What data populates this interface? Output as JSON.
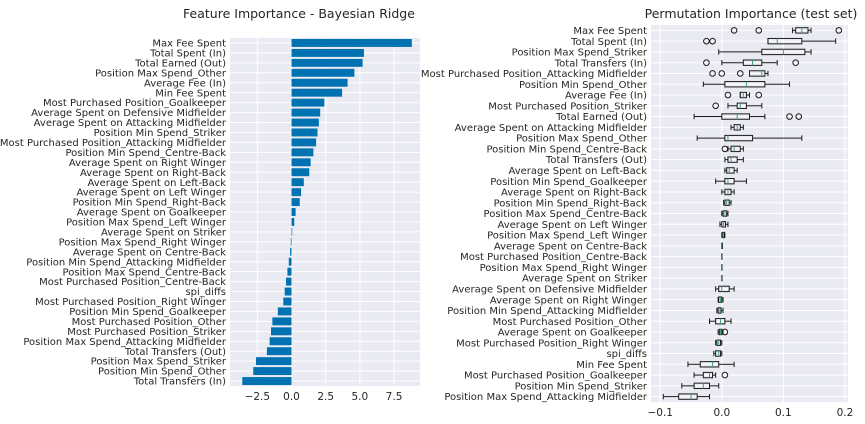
{
  "theme": {
    "background": "#ffffff",
    "panel": "#eaeaf2",
    "grid": "#ffffff",
    "bar": "#0072b2",
    "box_edge": "#1a1a1a",
    "median": "#3f9f76",
    "text": "#262626"
  },
  "chart_data": [
    {
      "type": "bar",
      "orientation": "horizontal",
      "title": "Feature Importance - Bayesian Ridge",
      "xlim": [
        -4.5,
        9.4
      ],
      "xticks": [
        -2.5,
        0.0,
        2.5,
        5.0,
        7.5
      ],
      "xtick_labels": [
        "−2.5",
        "0.0",
        "2.5",
        "5.0",
        "7.5"
      ],
      "grid": true,
      "categories": [
        "Max Fee Spent",
        "Total Spent (In)",
        "Total Earned (Out)",
        "Position Max Spend_Other",
        "Average Fee (In)",
        "Min Fee Spent",
        "Most Purchased Position_Goalkeeper",
        "Average Spent on Defensive Midfielder",
        "Average Spent on Attacking Midfielder",
        "Position Min Spend_Striker",
        "Most Purchased Position_Attacking Midfielder",
        "Position Min Spend_Centre-Back",
        "Average Spent on Right Winger",
        "Average Spent on Right-Back",
        "Average Spent on Left-Back",
        "Average Spent on Left Winger",
        "Position Min Spend_Right-Back",
        "Average Spent on Goalkeeper",
        "Position Max Spend_Left Winger",
        "Average Spent on Striker",
        "Position Max Spend_Right Winger",
        "Average Spent on Centre-Back",
        "Position Min Spend_Attacking Midfielder",
        "Position Max Spend_Centre-Back",
        "Most Purchased Position_Centre-Back",
        "spi_diffs",
        "Most Purchased Position_Right Winger",
        "Position Min Spend_Goalkeeper",
        "Most Purchased Position_Other",
        "Most Purchased Position_Striker",
        "Position Max Spend_Attacking Midfielder",
        "Total Transfers (Out)",
        "Position Max Spend_Striker",
        "Position Min Spend_Other",
        "Total Transfers (In)"
      ],
      "values": [
        8.8,
        5.3,
        5.2,
        4.6,
        4.1,
        3.7,
        2.4,
        2.1,
        2.0,
        1.9,
        1.8,
        1.6,
        1.4,
        1.3,
        0.9,
        0.7,
        0.6,
        0.3,
        0.2,
        0.05,
        -0.05,
        -0.1,
        -0.2,
        -0.3,
        -0.4,
        -0.5,
        -0.6,
        -1.0,
        -1.4,
        -1.5,
        -1.6,
        -1.8,
        -2.6,
        -2.8,
        -3.6
      ]
    },
    {
      "type": "box",
      "orientation": "horizontal",
      "title": "Permutation Importance (test set)",
      "xlim": [
        -0.115,
        0.205
      ],
      "xticks": [
        -0.1,
        0.0,
        0.1,
        0.2
      ],
      "xtick_labels": [
        "−0.1",
        "0.0",
        "0.1",
        "0.2"
      ],
      "grid": true,
      "categories": [
        "Max Fee Spent",
        "Total Spent (In)",
        "Position Max Spend_Striker",
        "Total Transfers (In)",
        "Most Purchased Position_Attacking Midfielder",
        "Position Min Spend_Other",
        "Average Fee (In)",
        "Most Purchased Position_Striker",
        "Total Earned (Out)",
        "Average Spent on Attacking Midfielder",
        "Position Max Spend_Other",
        "Position Min Spend_Centre-Back",
        "Total Transfers (Out)",
        "Average Spent on Left-Back",
        "Position Min Spend_Goalkeeper",
        "Average Spent on Right-Back",
        "Position Min Spend_Right-Back",
        "Position Max Spend_Centre-Back",
        "Average Spent on Left Winger",
        "Position Max Spend_Left Winger",
        "Average Spent on Centre-Back",
        "Most Purchased Position_Centre-Back",
        "Position Max Spend_Right Winger",
        "Average Spent on Striker",
        "Average Spent on Defensive Midfielder",
        "Average Spent on Right Winger",
        "Position Min Spend_Attacking Midfielder",
        "Most Purchased Position_Other",
        "Average Spent on Goalkeeper",
        "Most Purchased Position_Right Winger",
        "spi_diffs",
        "Min Fee Spent",
        "Most Purchased Position_Goalkeeper",
        "Position Min Spend_Striker",
        "Position Max Spend_Attacking Midfielder"
      ],
      "boxes": [
        {
          "q1": 0.12,
          "med": 0.13,
          "q3": 0.14,
          "wlo": 0.115,
          "whi": 0.145,
          "fliers": [
            0.02,
            0.06,
            0.19
          ]
        },
        {
          "q1": 0.075,
          "med": 0.09,
          "q3": 0.13,
          "wlo": 0.075,
          "whi": 0.185,
          "fliers": [
            -0.025,
            -0.015
          ]
        },
        {
          "q1": 0.065,
          "med": 0.1,
          "q3": 0.135,
          "wlo": -0.005,
          "whi": 0.145,
          "fliers": []
        },
        {
          "q1": 0.035,
          "med": 0.05,
          "q3": 0.065,
          "wlo": 0.0,
          "whi": 0.09,
          "fliers": [
            -0.025,
            0.12
          ]
        },
        {
          "q1": 0.045,
          "med": 0.065,
          "q3": 0.07,
          "wlo": 0.045,
          "whi": 0.075,
          "fliers": [
            -0.015,
            0.0,
            0.03
          ]
        },
        {
          "q1": 0.005,
          "med": 0.04,
          "q3": 0.07,
          "wlo": -0.03,
          "whi": 0.11,
          "fliers": []
        },
        {
          "q1": 0.03,
          "med": 0.035,
          "q3": 0.04,
          "wlo": 0.03,
          "whi": 0.045,
          "fliers": [
            0.01,
            0.06
          ]
        },
        {
          "q1": 0.025,
          "med": 0.03,
          "q3": 0.04,
          "wlo": 0.01,
          "whi": 0.065,
          "fliers": [
            -0.01
          ]
        },
        {
          "q1": 0.0,
          "med": 0.025,
          "q3": 0.045,
          "wlo": -0.045,
          "whi": 0.07,
          "fliers": [
            0.11,
            0.125
          ]
        },
        {
          "q1": 0.02,
          "med": 0.025,
          "q3": 0.03,
          "wlo": 0.015,
          "whi": 0.035,
          "fliers": []
        },
        {
          "q1": 0.005,
          "med": 0.01,
          "q3": 0.05,
          "wlo": -0.04,
          "whi": 0.13,
          "fliers": []
        },
        {
          "q1": 0.015,
          "med": 0.02,
          "q3": 0.03,
          "wlo": 0.01,
          "whi": 0.035,
          "fliers": [
            0.005
          ]
        },
        {
          "q1": 0.01,
          "med": 0.015,
          "q3": 0.025,
          "wlo": 0.005,
          "whi": 0.035,
          "fliers": []
        },
        {
          "q1": 0.008,
          "med": 0.012,
          "q3": 0.02,
          "wlo": 0.005,
          "whi": 0.025,
          "fliers": []
        },
        {
          "q1": 0.005,
          "med": 0.01,
          "q3": 0.02,
          "wlo": -0.01,
          "whi": 0.04,
          "fliers": []
        },
        {
          "q1": 0.005,
          "med": 0.01,
          "q3": 0.015,
          "wlo": 0.0,
          "whi": 0.02,
          "fliers": []
        },
        {
          "q1": 0.005,
          "med": 0.008,
          "q3": 0.012,
          "wlo": 0.003,
          "whi": 0.015,
          "fliers": []
        },
        {
          "q1": 0.002,
          "med": 0.005,
          "q3": 0.008,
          "wlo": 0.0,
          "whi": 0.01,
          "fliers": []
        },
        {
          "q1": 0.0,
          "med": 0.003,
          "q3": 0.006,
          "wlo": -0.003,
          "whi": 0.01,
          "fliers": []
        },
        {
          "q1": 0.001,
          "med": 0.002,
          "q3": 0.004,
          "wlo": 0.0,
          "whi": 0.005,
          "fliers": []
        },
        {
          "q1": 0.0,
          "med": 0.0,
          "q3": 0.001,
          "wlo": 0.0,
          "whi": 0.001,
          "fliers": []
        },
        {
          "q1": 0.0,
          "med": 0.0,
          "q3": 0.0,
          "wlo": 0.0,
          "whi": 0.0,
          "fliers": []
        },
        {
          "q1": 0.0,
          "med": 0.0,
          "q3": 0.0,
          "wlo": 0.0,
          "whi": 0.0,
          "fliers": []
        },
        {
          "q1": 0.0,
          "med": 0.0,
          "q3": 0.0,
          "wlo": 0.0,
          "whi": 0.0,
          "fliers": []
        },
        {
          "q1": -0.005,
          "med": 0.0,
          "q3": 0.012,
          "wlo": -0.01,
          "whi": 0.02,
          "fliers": []
        },
        {
          "q1": -0.005,
          "med": -0.002,
          "q3": 0.0,
          "wlo": -0.006,
          "whi": 0.002,
          "fliers": []
        },
        {
          "q1": -0.006,
          "med": -0.003,
          "q3": -0.001,
          "wlo": -0.008,
          "whi": 0.002,
          "fliers": []
        },
        {
          "q1": -0.01,
          "med": -0.002,
          "q3": 0.005,
          "wlo": -0.02,
          "whi": 0.015,
          "fliers": []
        },
        {
          "q1": -0.004,
          "med": -0.002,
          "q3": 0.0,
          "wlo": -0.006,
          "whi": 0.002,
          "fliers": [
            0.005
          ]
        },
        {
          "q1": -0.008,
          "med": -0.005,
          "q3": -0.002,
          "wlo": -0.01,
          "whi": 0.0,
          "fliers": []
        },
        {
          "q1": -0.01,
          "med": -0.005,
          "q3": -0.002,
          "wlo": -0.013,
          "whi": 0.0,
          "fliers": []
        },
        {
          "q1": -0.035,
          "med": -0.015,
          "q3": -0.005,
          "wlo": -0.055,
          "whi": 0.02,
          "fliers": []
        },
        {
          "q1": -0.03,
          "med": -0.02,
          "q3": -0.015,
          "wlo": -0.045,
          "whi": -0.01,
          "fliers": [
            0.005
          ]
        },
        {
          "q1": -0.045,
          "med": -0.03,
          "q3": -0.02,
          "wlo": -0.065,
          "whi": -0.005,
          "fliers": []
        },
        {
          "q1": -0.07,
          "med": -0.05,
          "q3": -0.04,
          "wlo": -0.095,
          "whi": -0.02,
          "fliers": []
        }
      ]
    }
  ]
}
